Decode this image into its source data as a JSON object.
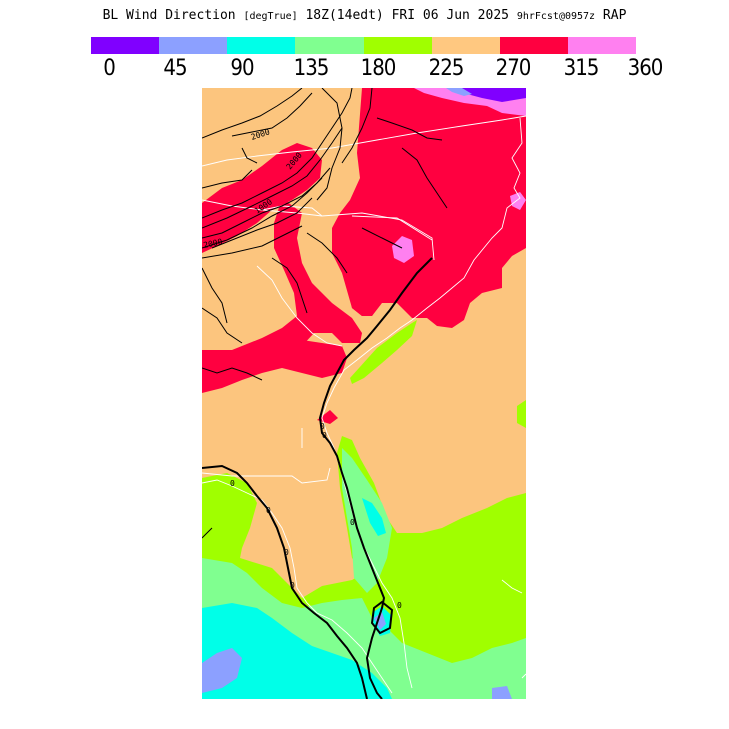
{
  "title": {
    "field": "BL Wind Direction",
    "units": "[degTrue]",
    "time": "18Z(14edt) FRI 06 Jun 2025",
    "forecast": "9hrFcst@0957z",
    "model": "RAP"
  },
  "legend": {
    "ticks": [
      "0",
      "45",
      "90",
      "135",
      "180",
      "225",
      "270",
      "315",
      "360"
    ],
    "colors": [
      "#8000ff",
      "#8ca0ff",
      "#00ffe8",
      "#80ff90",
      "#a0ff00",
      "#ffc880",
      "#ff0040",
      "#ff80f0"
    ]
  },
  "map": {
    "colors": {
      "tan": "#fcc57e",
      "red": "#ff0040",
      "pink": "#ff80f0",
      "lime": "#a0ff00",
      "mint": "#80ff90",
      "cyan": "#00ffe8",
      "blue": "#8ca0ff",
      "purple": "#8000ff"
    },
    "contour_labels": [
      "2000",
      "1000",
      "2000",
      "2000",
      "0",
      "0",
      "0",
      "0",
      "0",
      "0",
      "0",
      "0"
    ]
  }
}
